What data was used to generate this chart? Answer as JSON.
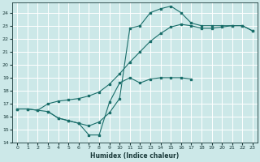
{
  "xlabel": "Humidex (Indice chaleur)",
  "bg_color": "#cce8e8",
  "grid_color": "#ffffff",
  "line_color": "#1a6e6a",
  "xlim": [
    -0.5,
    23.5
  ],
  "ylim": [
    14,
    24.8
  ],
  "yticks": [
    14,
    15,
    16,
    17,
    18,
    19,
    20,
    21,
    22,
    23,
    24
  ],
  "xticks": [
    0,
    1,
    2,
    3,
    4,
    5,
    6,
    7,
    8,
    9,
    10,
    11,
    12,
    13,
    14,
    15,
    16,
    17,
    18,
    19,
    20,
    21,
    22,
    23
  ],
  "curve1_x": [
    0,
    1,
    2,
    3,
    4,
    5,
    6,
    7,
    8,
    9,
    10,
    11,
    12,
    13,
    14,
    15,
    16,
    17,
    18,
    19,
    20,
    21,
    22,
    23
  ],
  "curve1_y": [
    16.6,
    16.6,
    16.5,
    17.0,
    17.2,
    17.3,
    17.4,
    17.6,
    17.9,
    18.5,
    19.3,
    20.2,
    21.0,
    21.8,
    22.4,
    22.9,
    23.1,
    23.0,
    22.8,
    22.8,
    22.9,
    23.0,
    23.0,
    22.6
  ],
  "curve2_x": [
    0,
    1,
    2,
    3,
    4,
    5,
    6,
    7,
    8,
    9,
    10,
    11,
    12,
    13,
    14,
    15,
    16,
    17,
    18,
    19,
    20,
    21,
    22,
    23
  ],
  "curve2_y": [
    16.6,
    16.6,
    16.5,
    16.4,
    15.9,
    15.7,
    15.5,
    15.3,
    15.6,
    16.3,
    17.4,
    22.8,
    23.0,
    24.0,
    24.3,
    24.5,
    24.0,
    23.2,
    23.0,
    23.0,
    23.0,
    23.0,
    23.0,
    22.6
  ],
  "curve3_x": [
    3,
    4,
    5,
    6,
    7,
    8,
    9,
    10,
    11,
    12,
    13,
    14,
    15,
    16,
    17
  ],
  "curve3_y": [
    16.4,
    15.9,
    15.7,
    15.5,
    14.6,
    14.6,
    17.1,
    18.6,
    19.0,
    18.6,
    18.9,
    19.0,
    19.0,
    19.0,
    18.9
  ]
}
